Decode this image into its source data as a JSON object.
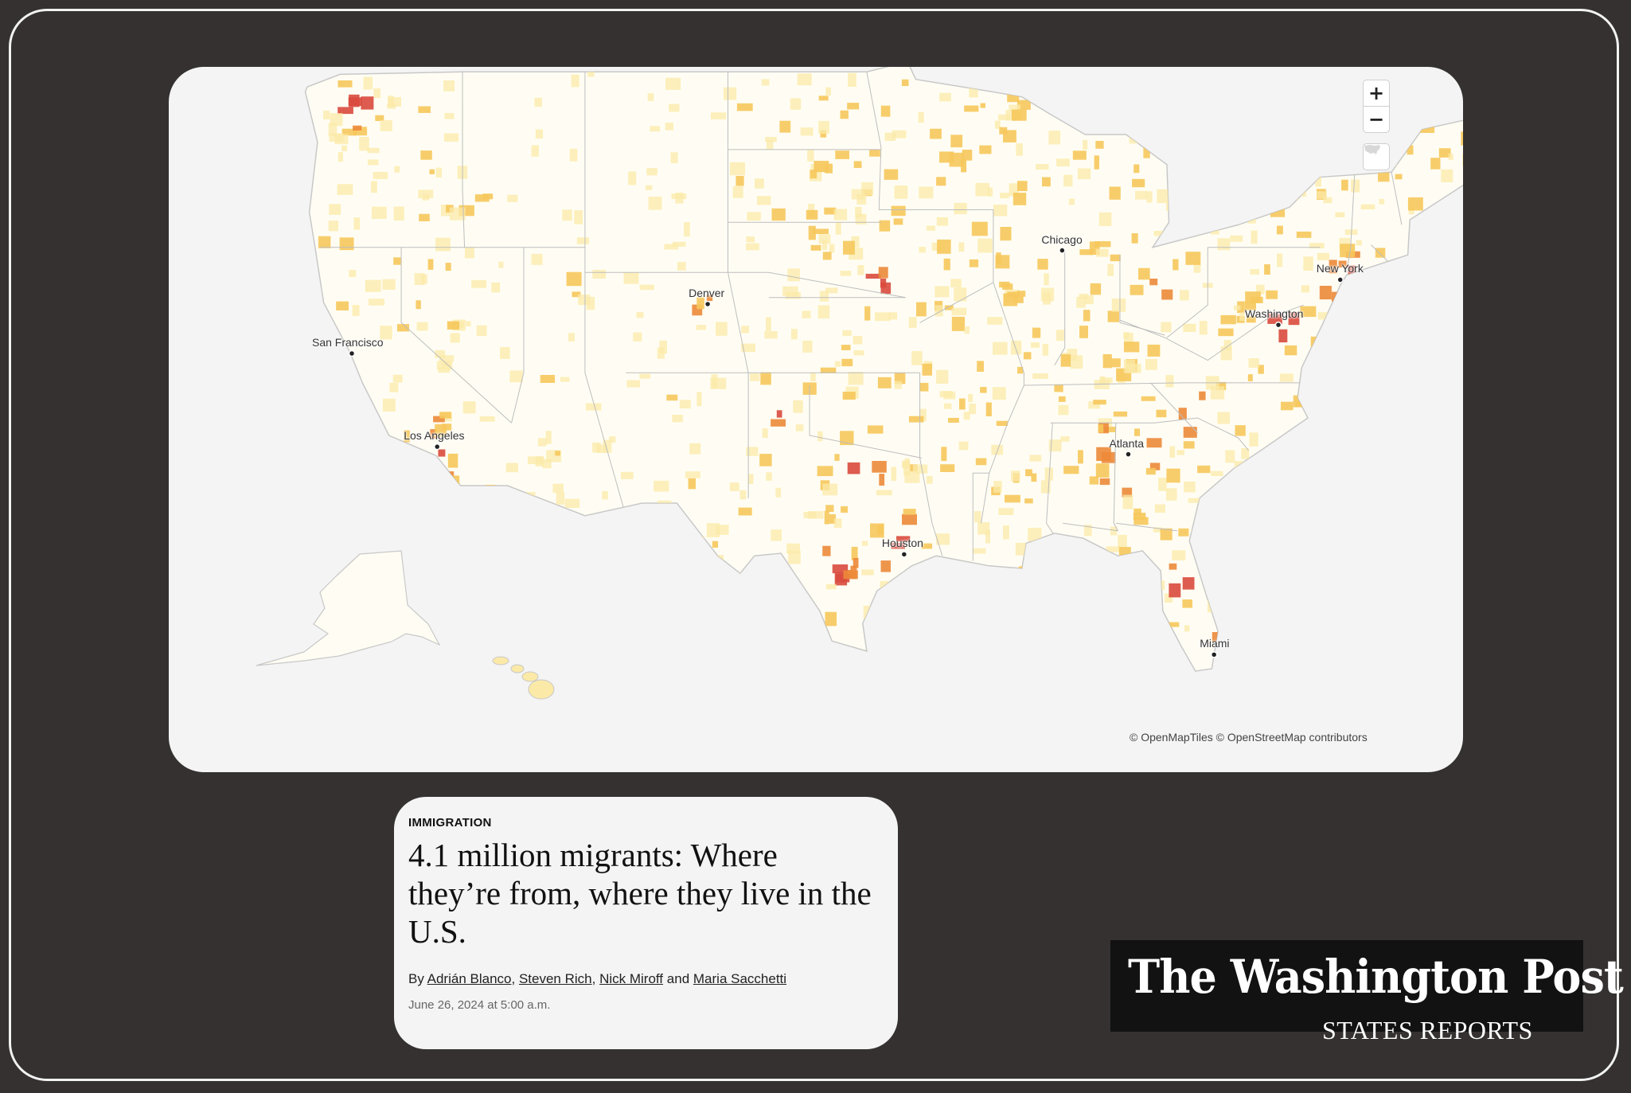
{
  "map": {
    "controls": {
      "zoom_in": "+",
      "zoom_out": "−",
      "reset_icon": "us-map-icon"
    },
    "cities": [
      {
        "name": "San Francisco",
        "lon": -122.42,
        "lat": 37.77
      },
      {
        "name": "Los Angeles",
        "lon": -118.24,
        "lat": 34.05
      },
      {
        "name": "Denver",
        "lon": -104.99,
        "lat": 39.74
      },
      {
        "name": "Chicago",
        "lon": -87.63,
        "lat": 41.88
      },
      {
        "name": "New York",
        "lon": -74.01,
        "lat": 40.71
      },
      {
        "name": "Washington",
        "lon": -77.04,
        "lat": 38.91
      },
      {
        "name": "Atlanta",
        "lon": -84.39,
        "lat": 33.75
      },
      {
        "name": "Houston",
        "lon": -95.37,
        "lat": 29.76
      },
      {
        "name": "Miami",
        "lon": -80.19,
        "lat": 25.76
      }
    ],
    "attribution": "© OpenMapTiles © OpenStreetMap contributors",
    "colors": {
      "land": "#fffdf3",
      "low": "#fbe9a8",
      "mid": "#f6c85c",
      "high": "#ec8a3a",
      "highest": "#d94a3d",
      "border": "#c8c8c8"
    }
  },
  "article": {
    "kicker": "IMMIGRATION",
    "headline": "4.1 million migrants: Where they’re from, where they live in the U.S.",
    "by": "By",
    "authors": [
      "Adrián Blanco",
      "Steven Rich",
      "Nick Miroff",
      "Maria Sacchetti"
    ],
    "and": "and",
    "date": "June 26, 2024 at 5:00 a.m."
  },
  "brand": {
    "name": "The Washington Post",
    "subtitle": "STATES REPORTS"
  }
}
